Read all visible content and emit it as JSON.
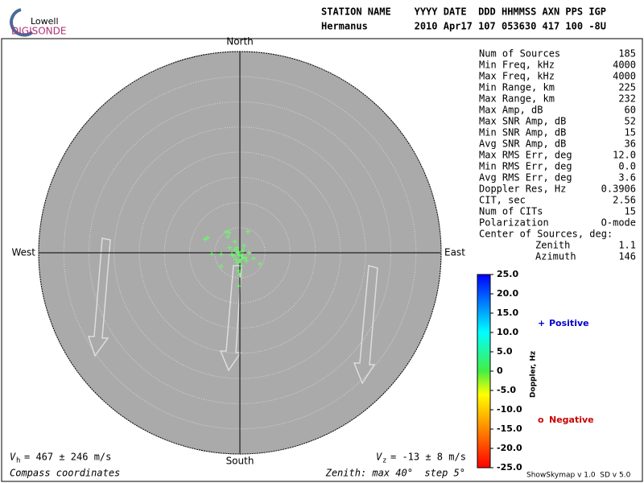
{
  "logo": {
    "top": "Lowell",
    "bottom": "DIGISONDE"
  },
  "header": {
    "line1": "STATION NAME    YYYY DATE  DDD HHMMSS AXN PPS IGP",
    "line2": "Hermanus        2010 Apr17 107 053630 417 100 -8U"
  },
  "stats": [
    [
      "Num of Sources",
      "185"
    ],
    [
      "Min Freq, kHz",
      "4000"
    ],
    [
      "Max Freq, kHz",
      "4000"
    ],
    [
      "Min Range, km",
      "225"
    ],
    [
      "Max Range, km",
      "232"
    ],
    [
      "Max Amp, dB",
      "60"
    ],
    [
      "Max SNR Amp, dB",
      "52"
    ],
    [
      "Min SNR Amp, dB",
      "15"
    ],
    [
      "Avg SNR Amp, dB",
      "36"
    ],
    [
      "Max RMS Err, deg",
      "12.0"
    ],
    [
      "Min RMS Err, deg",
      "0.0"
    ],
    [
      "Avg RMS Err, deg",
      "3.6"
    ],
    [
      "Doppler Res, Hz",
      "0.3906"
    ],
    [
      "CIT, sec",
      "2.56"
    ],
    [
      "Num of CITs",
      "15"
    ],
    [
      "Polarization",
      "O-mode"
    ]
  ],
  "center": {
    "title": "Center of Sources, deg:",
    "rows": [
      [
        "Zenith",
        "1.1"
      ],
      [
        "Azimuth",
        "146"
      ]
    ]
  },
  "chart_data": {
    "type": "skymap",
    "directions": {
      "north": "North",
      "south": "South",
      "east": "East",
      "west": "West"
    },
    "xlim": [
      -40,
      40
    ],
    "ylim": [
      -40,
      40
    ],
    "rticks": [
      5,
      10,
      15,
      20,
      25,
      30,
      35,
      40
    ],
    "series": [
      {
        "name": "Positive",
        "color": "#0000cc",
        "point_color": "#66ff66",
        "x": [
          -6.9,
          -6.4,
          -2.7,
          -2.1,
          -2.4,
          1.6,
          -5.6,
          -3.7,
          -3.7,
          -0.2,
          4.0,
          2.7,
          -1.0,
          -0.6,
          -0.3,
          0.2,
          0.5,
          -1.3,
          -0.8,
          0.0,
          0.6,
          1.1,
          -0.5,
          -1.6,
          0.3,
          1.8,
          -0.2,
          0.0,
          -1.0,
          0.8,
          -2.0,
          1.3,
          -0.4,
          0.4,
          -0.1
        ],
        "y": [
          2.7,
          3.0,
          4.2,
          4.0,
          3.2,
          4.2,
          -0.2,
          -0.3,
          -2.7,
          -6.6,
          -2.2,
          -1.1,
          0.6,
          1.0,
          0.2,
          -0.4,
          -0.8,
          -0.6,
          -1.3,
          -1.6,
          0.4,
          -1.0,
          -2.0,
          -0.3,
          -2.6,
          0.0,
          -3.6,
          -4.4,
          2.2,
          1.4,
          1.0,
          -1.6,
          0.0,
          -1.2,
          -0.6
        ]
      },
      {
        "name": "Negative",
        "color": "#cc0000",
        "point_color": "#cc0000",
        "x": [],
        "y": []
      }
    ]
  },
  "colorbar": {
    "label": "Doppler, Hz",
    "lim": [
      -25,
      25
    ],
    "ticks": [
      {
        "value": 25,
        "label": "25.0"
      },
      {
        "value": 20,
        "label": "20.0"
      },
      {
        "value": 15,
        "label": "15.0"
      },
      {
        "value": 10,
        "label": "10.0"
      },
      {
        "value": 5,
        "label": "5.0"
      },
      0,
      {
        "value": -5,
        "label": "-5.0"
      },
      {
        "value": -10,
        "label": "-10.0"
      },
      {
        "value": -15,
        "label": "-15.0"
      },
      {
        "value": -20,
        "label": "-20.0"
      },
      {
        "value": -25,
        "label": "-25.0"
      }
    ]
  },
  "footer": {
    "vh": {
      "symbol": "V",
      "sub": "h",
      "text": "= 467 ± 246 m/s"
    },
    "vz": {
      "symbol": "V",
      "sub": "z",
      "text": "= -13 ± 8 m/s"
    },
    "coords": "Compass coordinates",
    "zenith": "Zenith: max 40°  step 5°",
    "version": "ShowSkymap v 1.0  SD v 5.0"
  }
}
